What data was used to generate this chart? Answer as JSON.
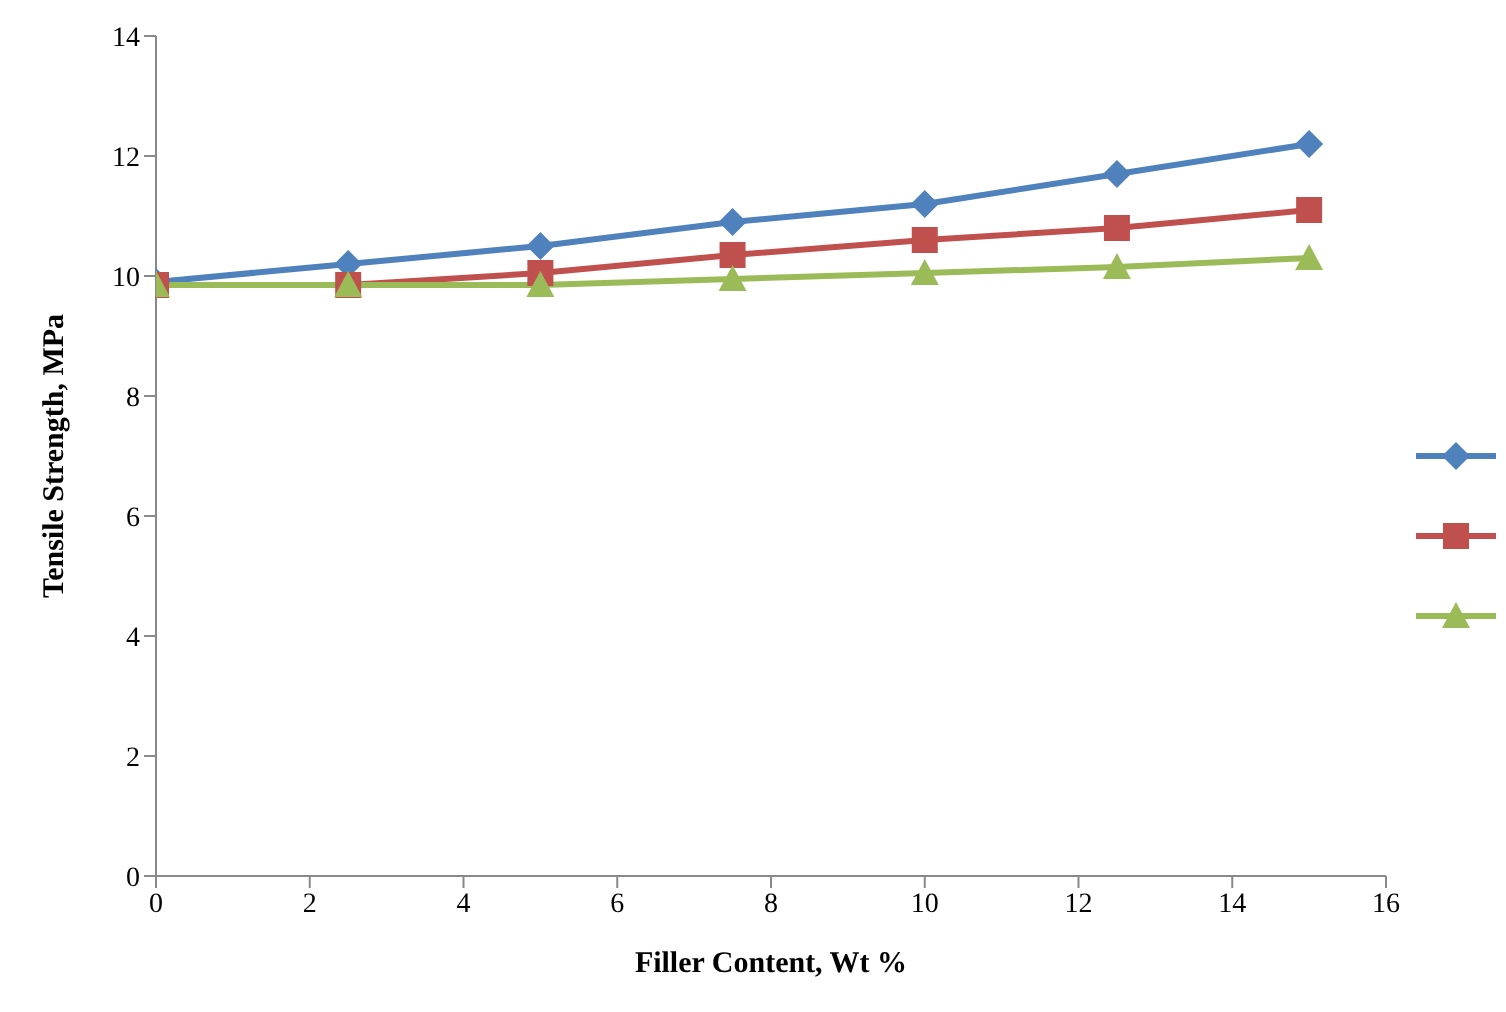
{
  "chart_data": {
    "type": "line",
    "xlabel": "Filler Content, Wt %",
    "ylabel": "Tensile Strength, MPa",
    "x": [
      0,
      2.5,
      5,
      7.5,
      10,
      12.5,
      15
    ],
    "series": [
      {
        "color": "#4f81bd",
        "marker": "diamond",
        "values": [
          9.9,
          10.2,
          10.5,
          10.9,
          11.2,
          11.7,
          12.2
        ]
      },
      {
        "color": "#c0504d",
        "marker": "square",
        "values": [
          9.85,
          9.85,
          10.05,
          10.35,
          10.6,
          10.8,
          11.1
        ]
      },
      {
        "color": "#9bbb59",
        "marker": "triangle",
        "values": [
          9.85,
          9.85,
          9.85,
          9.95,
          10.05,
          10.15,
          10.3
        ]
      }
    ],
    "xlim": [
      0,
      16
    ],
    "xticks": [
      0,
      2,
      4,
      6,
      8,
      10,
      12,
      14,
      16
    ],
    "ylim": [
      0,
      14
    ],
    "yticks": [
      0,
      2,
      4,
      6,
      8,
      10,
      12,
      14
    ],
    "grid": false
  }
}
